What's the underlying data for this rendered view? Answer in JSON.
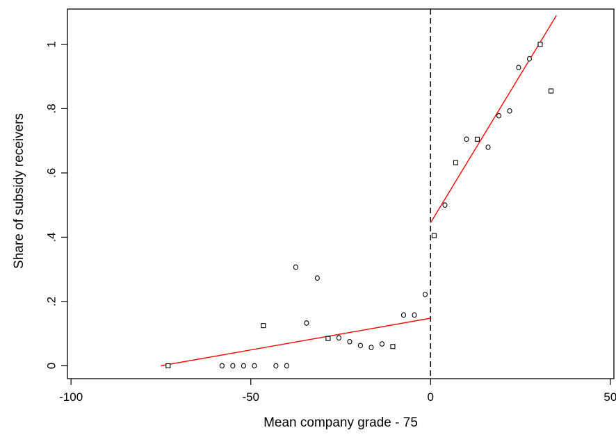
{
  "chart_data": {
    "type": "scatter",
    "title": "",
    "xlabel": "Mean company grade - 75",
    "ylabel": "Share of subsidy receivers",
    "xlim": [
      -101,
      51
    ],
    "ylim": [
      -0.04,
      1.11
    ],
    "xticks": [
      -100,
      -50,
      0,
      50
    ],
    "xtick_labels": [
      "-100",
      "-50",
      "0",
      "50"
    ],
    "yticks": [
      0,
      0.2,
      0.4,
      0.6,
      0.8,
      1
    ],
    "ytick_labels": [
      "0",
      ".2",
      ".4",
      ".6",
      ".8",
      "1"
    ],
    "grid": false,
    "legend": "none",
    "cutoff_x": 0,
    "series": [
      {
        "marker": "circle",
        "points": [
          {
            "x": -58,
            "y": 0
          },
          {
            "x": -55,
            "y": 0
          },
          {
            "x": -52,
            "y": 0
          },
          {
            "x": -49,
            "y": 0
          },
          {
            "x": -43,
            "y": 0
          },
          {
            "x": -40,
            "y": 0
          },
          {
            "x": -37.5,
            "y": 0.307
          },
          {
            "x": -31.5,
            "y": 0.273
          },
          {
            "x": -34.5,
            "y": 0.133
          },
          {
            "x": -25.5,
            "y": 0.087
          },
          {
            "x": -22.5,
            "y": 0.075
          },
          {
            "x": -19.5,
            "y": 0.063
          },
          {
            "x": -16.5,
            "y": 0.057
          },
          {
            "x": -13.5,
            "y": 0.068
          },
          {
            "x": -7.5,
            "y": 0.158
          },
          {
            "x": -4.5,
            "y": 0.158
          },
          {
            "x": -1.5,
            "y": 0.222
          },
          {
            "x": 4,
            "y": 0.5
          },
          {
            "x": 10,
            "y": 0.705
          },
          {
            "x": 16,
            "y": 0.68
          },
          {
            "x": 19,
            "y": 0.778
          },
          {
            "x": 22,
            "y": 0.793
          },
          {
            "x": 24.5,
            "y": 0.928
          },
          {
            "x": 27.5,
            "y": 0.955
          }
        ]
      },
      {
        "marker": "square",
        "points": [
          {
            "x": -73,
            "y": 0
          },
          {
            "x": -46.5,
            "y": 0.125
          },
          {
            "x": -28.5,
            "y": 0.085
          },
          {
            "x": -10.5,
            "y": 0.06
          },
          {
            "x": 1,
            "y": 0.405
          },
          {
            "x": 7,
            "y": 0.632
          },
          {
            "x": 13,
            "y": 0.705
          },
          {
            "x": 30.5,
            "y": 1.0
          },
          {
            "x": 33.5,
            "y": 0.855
          }
        ]
      }
    ],
    "fit_lines": [
      {
        "color": "#ff0000",
        "points": [
          [
            -75,
            0
          ],
          [
            0,
            0.148
          ]
        ]
      },
      {
        "color": "#ff0000",
        "points": [
          [
            0,
            0.445
          ],
          [
            35,
            1.09
          ]
        ]
      }
    ]
  }
}
